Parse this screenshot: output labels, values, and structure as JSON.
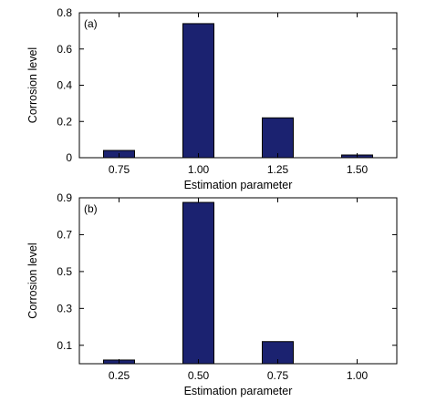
{
  "chart_data": [
    {
      "type": "bar",
      "panel_label": "(a)",
      "categories": [
        "0.75",
        "1.00",
        "1.25",
        "1.50"
      ],
      "values": [
        0.04,
        0.74,
        0.22,
        0.015
      ],
      "xlabel": "Estimation parameter",
      "ylabel": "Corrosion level",
      "ylim": [
        0,
        0.8
      ],
      "yticks": [
        "0",
        "0.2",
        "0.4",
        "0.6",
        "0.8"
      ],
      "grid": false,
      "bar_color": "#1b2270"
    },
    {
      "type": "bar",
      "panel_label": "(b)",
      "categories": [
        "0.25",
        "0.50",
        "0.75",
        "1.00"
      ],
      "values": [
        0.02,
        0.875,
        0.12,
        0
      ],
      "xlabel": "Estimation parameter",
      "ylabel": "Corrosion level",
      "ylim": [
        0,
        0.9
      ],
      "yticks": [
        "0.1",
        "0.3",
        "0.5",
        "0.7",
        "0.9"
      ],
      "grid": false,
      "bar_color": "#1b2270"
    }
  ]
}
